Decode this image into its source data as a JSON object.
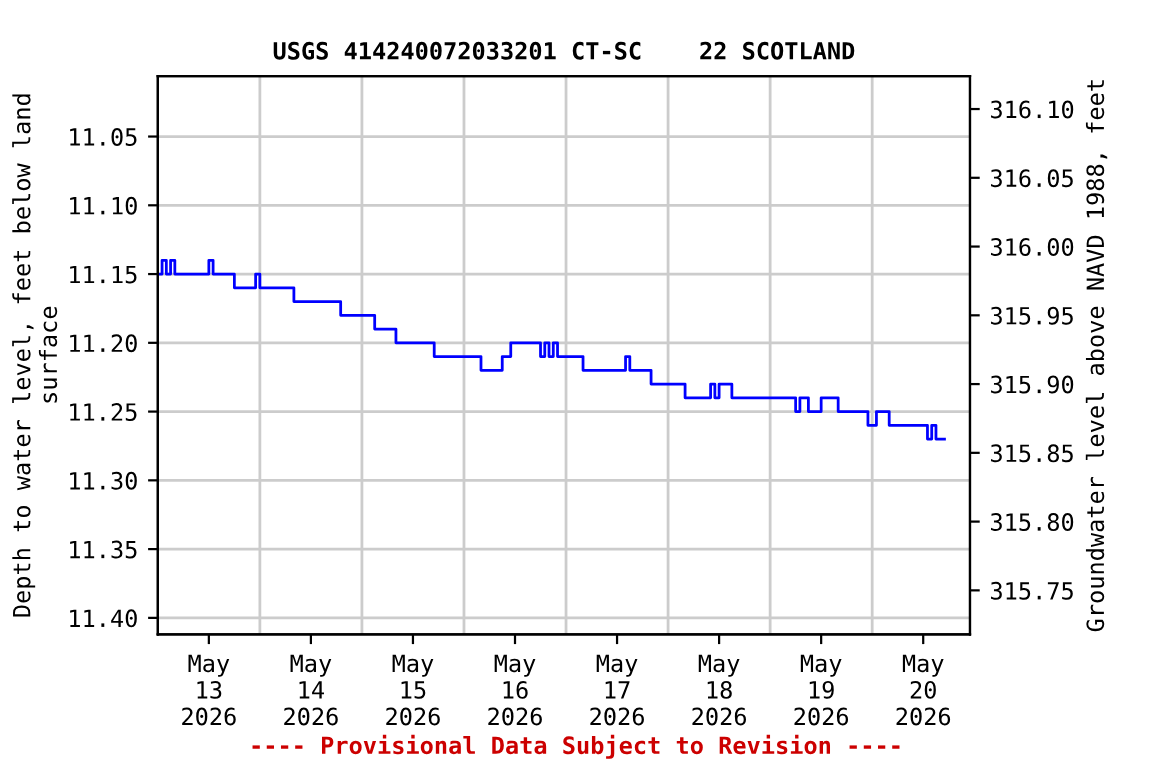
{
  "chart_data": {
    "type": "step",
    "title": "USGS 414240072033201 CT-SC    22 SCOTLAND",
    "ylabel": "Depth to water level, feet below land\nsurface",
    "y2label": "Groundwater level above NAVD 1988, feet",
    "annotations": [
      "---- Provisional Data Subject to Revision ----"
    ],
    "x": [
      "2026-05-13T00:00",
      "2026-05-13T01:00",
      "2026-05-13T02:00",
      "2026-05-13T03:00",
      "2026-05-13T04:00",
      "2026-05-13T12:00",
      "2026-05-13T13:00",
      "2026-05-13T18:00",
      "2026-05-13T23:00",
      "2026-05-14T00:00",
      "2026-05-14T08:00",
      "2026-05-14T19:00",
      "2026-05-15T03:00",
      "2026-05-15T08:00",
      "2026-05-15T17:00",
      "2026-05-16T04:00",
      "2026-05-16T09:00",
      "2026-05-16T11:00",
      "2026-05-16T18:00",
      "2026-05-16T19:00",
      "2026-05-16T20:00",
      "2026-05-16T21:00",
      "2026-05-16T22:00",
      "2026-05-17T04:00",
      "2026-05-17T14:00",
      "2026-05-17T15:00",
      "2026-05-17T20:00",
      "2026-05-18T04:00",
      "2026-05-18T10:00",
      "2026-05-18T11:00",
      "2026-05-18T12:00",
      "2026-05-18T15:00",
      "2026-05-19T06:00",
      "2026-05-19T07:00",
      "2026-05-19T09:00",
      "2026-05-19T12:00",
      "2026-05-19T16:00",
      "2026-05-19T23:00",
      "2026-05-20T01:00",
      "2026-05-20T04:00",
      "2026-05-20T13:00",
      "2026-05-20T14:00",
      "2026-05-20T15:00",
      "2026-05-20T17:00"
    ],
    "series": [
      {
        "color": "#0000ff",
        "values": [
          11.15,
          11.14,
          11.15,
          11.14,
          11.15,
          11.14,
          11.15,
          11.16,
          11.15,
          11.16,
          11.17,
          11.18,
          11.19,
          11.2,
          11.21,
          11.22,
          11.21,
          11.2,
          11.21,
          11.2,
          11.21,
          11.2,
          11.21,
          11.22,
          11.21,
          11.22,
          11.23,
          11.24,
          11.23,
          11.24,
          11.23,
          11.24,
          11.25,
          11.24,
          11.25,
          11.24,
          11.25,
          11.26,
          11.25,
          11.26,
          11.27,
          11.26,
          11.27,
          11.27
        ]
      }
    ],
    "xlim": [
      "2026-05-13T00:00",
      "2026-05-20T23:00"
    ],
    "xticks": [
      {
        "value": "2026-05-13T12:00",
        "label": "May\n13\n2026"
      },
      {
        "value": "2026-05-14T12:00",
        "label": "May\n14\n2026"
      },
      {
        "value": "2026-05-15T12:00",
        "label": "May\n15\n2026"
      },
      {
        "value": "2026-05-16T12:00",
        "label": "May\n16\n2026"
      },
      {
        "value": "2026-05-17T12:00",
        "label": "May\n17\n2026"
      },
      {
        "value": "2026-05-18T12:00",
        "label": "May\n18\n2026"
      },
      {
        "value": "2026-05-19T12:00",
        "label": "May\n19\n2026"
      },
      {
        "value": "2026-05-20T12:00",
        "label": "May\n20\n2026"
      },
      {
        "value": "2026-05-14T00:00",
        "label": null
      },
      {
        "value": "2026-05-15T00:00",
        "label": null
      },
      {
        "value": "2026-05-16T00:00",
        "label": null
      },
      {
        "value": "2026-05-17T00:00",
        "label": null
      },
      {
        "value": "2026-05-18T00:00",
        "label": null
      },
      {
        "value": "2026-05-19T00:00",
        "label": null
      },
      {
        "value": "2026-05-20T00:00",
        "label": null
      }
    ],
    "ylim": [
      11.412,
      11.006
    ],
    "yticks": [
      {
        "value": 11.05,
        "label": "11.05"
      },
      {
        "value": 11.1,
        "label": "11.10"
      },
      {
        "value": 11.15,
        "label": "11.15"
      },
      {
        "value": 11.2,
        "label": "11.20"
      },
      {
        "value": 11.25,
        "label": "11.25"
      },
      {
        "value": 11.3,
        "label": "11.30"
      },
      {
        "value": 11.35,
        "label": "11.35"
      },
      {
        "value": 11.4,
        "label": "11.40"
      }
    ],
    "y2lim": [
      315.718,
      316.124
    ],
    "y2ticks": [
      {
        "value": 315.75,
        "label": "315.75"
      },
      {
        "value": 315.8,
        "label": "315.80"
      },
      {
        "value": 315.85,
        "label": "315.85"
      },
      {
        "value": 315.9,
        "label": "315.90"
      },
      {
        "value": 315.95,
        "label": "315.95"
      },
      {
        "value": 316.0,
        "label": "316.00"
      },
      {
        "value": 316.05,
        "label": "316.05"
      },
      {
        "value": 316.1,
        "label": "316.10"
      }
    ],
    "grid": true,
    "marker": "none",
    "line_style": "solid"
  }
}
